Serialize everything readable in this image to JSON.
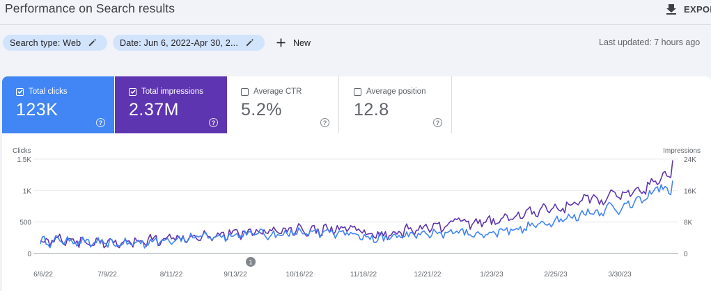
{
  "header": {
    "title": "Performance on Search results",
    "export_label": "EXPORT"
  },
  "filters": {
    "search_type": "Search type: Web",
    "date": "Date: Jun 6, 2022-Apr 30, 2...",
    "new_label": "New",
    "last_updated": "Last updated: 7 hours ago"
  },
  "metrics": {
    "clicks": {
      "label": "Total clicks",
      "value": "123K",
      "color": "#4285f4",
      "checked": true
    },
    "impressions": {
      "label": "Total impressions",
      "value": "2.37M",
      "color": "#5e35b1",
      "checked": true
    },
    "ctr": {
      "label": "Average CTR",
      "value": "5.2%",
      "checked": false
    },
    "position": {
      "label": "Average position",
      "value": "12.8",
      "checked": false
    }
  },
  "chart_data": {
    "type": "line",
    "left_axis_label": "Clicks",
    "right_axis_label": "Impressions",
    "left_ticks": [
      "0",
      "500",
      "1K",
      "1.5K"
    ],
    "right_ticks": [
      "0",
      "8K",
      "16K",
      "24K"
    ],
    "left_range": [
      0,
      1500
    ],
    "right_range": [
      0,
      24000
    ],
    "x_ticks": [
      "6/6/22",
      "7/9/22",
      "8/11/22",
      "9/13/22",
      "10/16/22",
      "11/18/22",
      "12/21/22",
      "1/23/23",
      "2/25/23",
      "3/30/23"
    ],
    "annotation_label": "1",
    "annotation_at": "9/13/22",
    "grid": true,
    "series": [
      {
        "name": "Clicks",
        "axis": "left",
        "color": "#4285f4",
        "anchors": [
          [
            0,
            200
          ],
          [
            5,
            190
          ],
          [
            10,
            220
          ],
          [
            15,
            210
          ],
          [
            20,
            200
          ],
          [
            25,
            170
          ],
          [
            30,
            180
          ],
          [
            35,
            150
          ],
          [
            40,
            160
          ],
          [
            45,
            165
          ],
          [
            50,
            170
          ],
          [
            55,
            180
          ],
          [
            60,
            200
          ],
          [
            65,
            230
          ],
          [
            70,
            235
          ],
          [
            75,
            240
          ],
          [
            80,
            260
          ],
          [
            85,
            280
          ],
          [
            90,
            270
          ],
          [
            95,
            280
          ],
          [
            100,
            300
          ],
          [
            105,
            310
          ],
          [
            110,
            320
          ],
          [
            115,
            330
          ],
          [
            120,
            300
          ],
          [
            125,
            310
          ],
          [
            130,
            330
          ],
          [
            135,
            340
          ],
          [
            140,
            320
          ],
          [
            145,
            330
          ],
          [
            150,
            340
          ],
          [
            155,
            350
          ],
          [
            160,
            330
          ],
          [
            165,
            330
          ],
          [
            170,
            240
          ],
          [
            175,
            250
          ],
          [
            180,
            250
          ],
          [
            185,
            280
          ],
          [
            190,
            290
          ],
          [
            195,
            300
          ],
          [
            200,
            320
          ],
          [
            205,
            310
          ],
          [
            210,
            330
          ],
          [
            215,
            370
          ],
          [
            220,
            340
          ],
          [
            225,
            290
          ],
          [
            230,
            320
          ],
          [
            235,
            330
          ],
          [
            240,
            380
          ],
          [
            245,
            400
          ],
          [
            250,
            390
          ],
          [
            255,
            450
          ],
          [
            260,
            470
          ],
          [
            265,
            520
          ],
          [
            270,
            560
          ],
          [
            275,
            560
          ],
          [
            280,
            620
          ],
          [
            285,
            680
          ],
          [
            290,
            650
          ],
          [
            295,
            760
          ],
          [
            300,
            710
          ],
          [
            305,
            780
          ],
          [
            310,
            830
          ],
          [
            315,
            890
          ],
          [
            320,
            1080
          ],
          [
            325,
            1000
          ]
        ],
        "noise": 55
      },
      {
        "name": "Impressions",
        "axis": "right",
        "color": "#5e35b1",
        "anchors": [
          [
            0,
            3200
          ],
          [
            5,
            3400
          ],
          [
            10,
            4000
          ],
          [
            15,
            3600
          ],
          [
            20,
            3200
          ],
          [
            25,
            2900
          ],
          [
            30,
            2700
          ],
          [
            35,
            2600
          ],
          [
            40,
            2700
          ],
          [
            45,
            2800
          ],
          [
            50,
            3100
          ],
          [
            55,
            3400
          ],
          [
            60,
            3800
          ],
          [
            65,
            4100
          ],
          [
            70,
            4300
          ],
          [
            75,
            4400
          ],
          [
            80,
            4600
          ],
          [
            85,
            4900
          ],
          [
            90,
            4800
          ],
          [
            95,
            5000
          ],
          [
            100,
            5200
          ],
          [
            105,
            5400
          ],
          [
            110,
            5600
          ],
          [
            115,
            5800
          ],
          [
            120,
            5600
          ],
          [
            125,
            5700
          ],
          [
            130,
            6000
          ],
          [
            135,
            6200
          ],
          [
            140,
            6100
          ],
          [
            145,
            6100
          ],
          [
            150,
            6300
          ],
          [
            155,
            6400
          ],
          [
            160,
            6200
          ],
          [
            165,
            6000
          ],
          [
            170,
            4700
          ],
          [
            175,
            4800
          ],
          [
            180,
            5000
          ],
          [
            185,
            5500
          ],
          [
            190,
            6000
          ],
          [
            195,
            6200
          ],
          [
            200,
            6600
          ],
          [
            205,
            6800
          ],
          [
            210,
            7200
          ],
          [
            215,
            8800
          ],
          [
            220,
            8400
          ],
          [
            225,
            7800
          ],
          [
            230,
            8200
          ],
          [
            235,
            8200
          ],
          [
            240,
            9000
          ],
          [
            245,
            9600
          ],
          [
            250,
            10000
          ],
          [
            255,
            10500
          ],
          [
            260,
            11000
          ],
          [
            265,
            11800
          ],
          [
            270,
            11500
          ],
          [
            275,
            12500
          ],
          [
            280,
            13300
          ],
          [
            285,
            14300
          ],
          [
            290,
            13500
          ],
          [
            295,
            15300
          ],
          [
            300,
            14300
          ],
          [
            305,
            15200
          ],
          [
            310,
            15500
          ],
          [
            315,
            17200
          ],
          [
            320,
            18200
          ],
          [
            325,
            20400
          ]
        ],
        "noise": 1000
      }
    ]
  }
}
